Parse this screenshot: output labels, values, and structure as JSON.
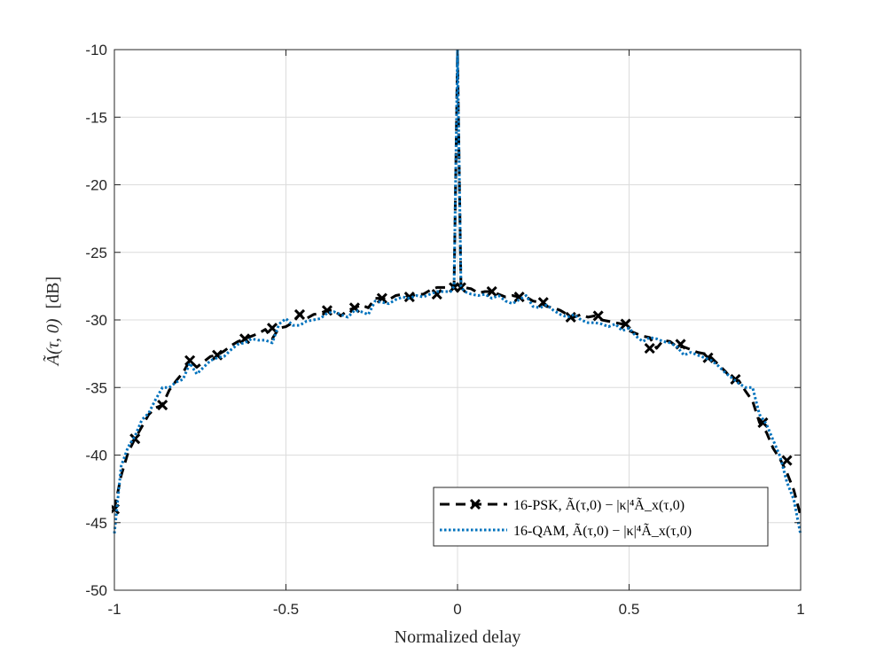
{
  "chart_data": {
    "type": "line",
    "xlabel": "Normalized delay",
    "ylabel_main": "Ã(τ, 0)",
    "ylabel_unit": "[dB]",
    "xlim": [
      -1,
      1
    ],
    "ylim": [
      -50,
      -10
    ],
    "xticks": [
      -1,
      -0.5,
      0,
      0.5,
      1
    ],
    "xtick_labels": [
      "-1",
      "-0.5",
      "0",
      "0.5",
      "1"
    ],
    "yticks": [
      -50,
      -45,
      -40,
      -35,
      -30,
      -25,
      -20,
      -15,
      -10
    ],
    "ytick_labels": [
      "-50",
      "-45",
      "-40",
      "-35",
      "-30",
      "-25",
      "-20",
      "-15",
      "-10"
    ],
    "grid": true,
    "legend_position": "lower-right",
    "series": [
      {
        "name": "16-PSK, Ã(τ,0) − |κ|⁴Ã_x(τ,0)",
        "color": "#000000",
        "style": "dashed",
        "marker": "x",
        "x": [
          -1,
          -0.98,
          -0.96,
          -0.94,
          -0.92,
          -0.9,
          -0.88,
          -0.86,
          -0.84,
          -0.82,
          -0.8,
          -0.78,
          -0.76,
          -0.74,
          -0.72,
          -0.7,
          -0.68,
          -0.66,
          -0.64,
          -0.62,
          -0.6,
          -0.58,
          -0.56,
          -0.54,
          -0.52,
          -0.5,
          -0.48,
          -0.46,
          -0.44,
          -0.42,
          -0.4,
          -0.38,
          -0.36,
          -0.34,
          -0.32,
          -0.3,
          -0.28,
          -0.26,
          -0.24,
          -0.22,
          -0.2,
          -0.18,
          -0.16,
          -0.14,
          -0.12,
          -0.1,
          -0.08,
          -0.06,
          -0.04,
          -0.02,
          -0.01,
          0,
          0.01,
          0.02,
          0.04,
          0.06,
          0.08,
          0.1,
          0.12,
          0.14,
          0.16,
          0.18,
          0.2,
          0.22,
          0.24,
          0.26,
          0.28,
          0.3,
          0.32,
          0.34,
          0.36,
          0.38,
          0.4,
          0.42,
          0.44,
          0.46,
          0.48,
          0.5,
          0.52,
          0.54,
          0.56,
          0.58,
          0.6,
          0.62,
          0.64,
          0.66,
          0.68,
          0.7,
          0.72,
          0.74,
          0.76,
          0.78,
          0.8,
          0.82,
          0.84,
          0.86,
          0.88,
          0.9,
          0.92,
          0.94,
          0.96,
          0.98,
          1
        ],
        "y": [
          -44,
          -41.5,
          -39.8,
          -38.8,
          -37.9,
          -37,
          -36.5,
          -36.3,
          -35.2,
          -34.5,
          -33.9,
          -33,
          -33.5,
          -33.1,
          -32.7,
          -32.6,
          -32.3,
          -31.9,
          -31.6,
          -31.4,
          -31.2,
          -31,
          -30.7,
          -31.4,
          -30.6,
          -30.5,
          -30.2,
          -29.6,
          -29.9,
          -29.6,
          -29.5,
          -29.3,
          -29.3,
          -29.7,
          -29.3,
          -29.1,
          -28.9,
          -29.1,
          -28.4,
          -28.4,
          -28.5,
          -28.2,
          -28.1,
          -28.3,
          -28.1,
          -28.1,
          -27.8,
          -27.6,
          -27.6,
          -27.6,
          -27.6,
          -10.2,
          -27.6,
          -27.6,
          -27.7,
          -28,
          -27.9,
          -27.9,
          -28.1,
          -28.3,
          -28.2,
          -28.3,
          -28.3,
          -28.6,
          -28.7,
          -29,
          -29.1,
          -29.3,
          -29.6,
          -29.8,
          -29.6,
          -29.8,
          -29.7,
          -30,
          -30.1,
          -30.2,
          -30.3,
          -30.8,
          -31,
          -31.2,
          -31.3,
          -32.1,
          -31.5,
          -31.6,
          -32,
          -32,
          -32.2,
          -32.4,
          -32.5,
          -32.8,
          -33.3,
          -33.8,
          -34.4,
          -34.5,
          -35.3,
          -36,
          -37.6,
          -38.3,
          -39.5,
          -40.3,
          -41.3,
          -42.6,
          -44.5
        ],
        "marker_x": [
          -1,
          -0.94,
          -0.86,
          -0.78,
          -0.7,
          -0.62,
          -0.54,
          -0.46,
          -0.38,
          -0.3,
          -0.22,
          -0.14,
          -0.06,
          -0.01,
          0.01,
          0.1,
          0.18,
          0.25,
          0.33,
          0.41,
          0.49,
          0.56,
          0.65,
          0.73,
          0.81,
          0.89,
          0.96
        ],
        "marker_y": [
          -44,
          -38.8,
          -36.3,
          -33,
          -32.6,
          -31.4,
          -30.6,
          -29.6,
          -29.3,
          -29.1,
          -28.4,
          -28.3,
          -28.1,
          -27.6,
          -27.6,
          -27.9,
          -28.3,
          -28.7,
          -29.8,
          -29.7,
          -30.3,
          -32.1,
          -31.8,
          -32.8,
          -34.4,
          -37.6,
          -40.4
        ]
      },
      {
        "name": "16-QAM, Ã(τ,0) − |κ|⁴Ã_x(τ,0)",
        "color": "#0072bd",
        "style": "dotted",
        "marker": "none",
        "x": [
          -1,
          -0.98,
          -0.96,
          -0.94,
          -0.92,
          -0.9,
          -0.88,
          -0.86,
          -0.84,
          -0.82,
          -0.8,
          -0.78,
          -0.76,
          -0.74,
          -0.72,
          -0.7,
          -0.68,
          -0.66,
          -0.64,
          -0.62,
          -0.6,
          -0.58,
          -0.56,
          -0.54,
          -0.52,
          -0.5,
          -0.48,
          -0.46,
          -0.44,
          -0.42,
          -0.4,
          -0.38,
          -0.36,
          -0.34,
          -0.32,
          -0.3,
          -0.28,
          -0.26,
          -0.24,
          -0.22,
          -0.2,
          -0.18,
          -0.16,
          -0.14,
          -0.12,
          -0.1,
          -0.08,
          -0.06,
          -0.04,
          -0.02,
          -0.01,
          0,
          0.01,
          0.02,
          0.04,
          0.06,
          0.08,
          0.1,
          0.12,
          0.14,
          0.16,
          0.18,
          0.2,
          0.22,
          0.24,
          0.26,
          0.28,
          0.3,
          0.32,
          0.34,
          0.36,
          0.38,
          0.4,
          0.42,
          0.44,
          0.46,
          0.48,
          0.5,
          0.52,
          0.54,
          0.56,
          0.58,
          0.6,
          0.62,
          0.64,
          0.66,
          0.68,
          0.7,
          0.72,
          0.74,
          0.76,
          0.78,
          0.8,
          0.82,
          0.84,
          0.86,
          0.88,
          0.9,
          0.92,
          0.94,
          0.96,
          0.98,
          1
        ],
        "y": [
          -45.8,
          -40.8,
          -39.4,
          -38.6,
          -37.4,
          -36.9,
          -35.9,
          -35,
          -35,
          -34.6,
          -34.4,
          -33.2,
          -34,
          -33.5,
          -33,
          -32.8,
          -32.7,
          -32.2,
          -31.8,
          -31.7,
          -31.4,
          -31.5,
          -31.5,
          -31.7,
          -30.3,
          -29.9,
          -30.4,
          -30.4,
          -30.1,
          -30,
          -29.9,
          -29.5,
          -29.4,
          -29.6,
          -29.8,
          -29.3,
          -29.4,
          -29.6,
          -28.6,
          -28.7,
          -28.8,
          -28.5,
          -28.3,
          -28.4,
          -28.2,
          -28.3,
          -28.1,
          -27.9,
          -27.9,
          -27.9,
          -27.5,
          -10,
          -27.5,
          -27.9,
          -28.1,
          -28.2,
          -28.1,
          -28.4,
          -28.2,
          -28.6,
          -28.8,
          -28.5,
          -28.2,
          -29,
          -29.1,
          -28.9,
          -29.3,
          -29.6,
          -29.8,
          -29.6,
          -30,
          -30.2,
          -30.2,
          -30.3,
          -30.5,
          -30.3,
          -30.8,
          -30.6,
          -31.2,
          -31.6,
          -31.3,
          -31.4,
          -31.6,
          -31.7,
          -32,
          -32.6,
          -32.4,
          -32.6,
          -32.8,
          -33,
          -33.4,
          -33.9,
          -34.3,
          -34.7,
          -35,
          -35,
          -37,
          -37.7,
          -38.9,
          -40.1,
          -42,
          -43.3,
          -45.9
        ]
      }
    ]
  }
}
